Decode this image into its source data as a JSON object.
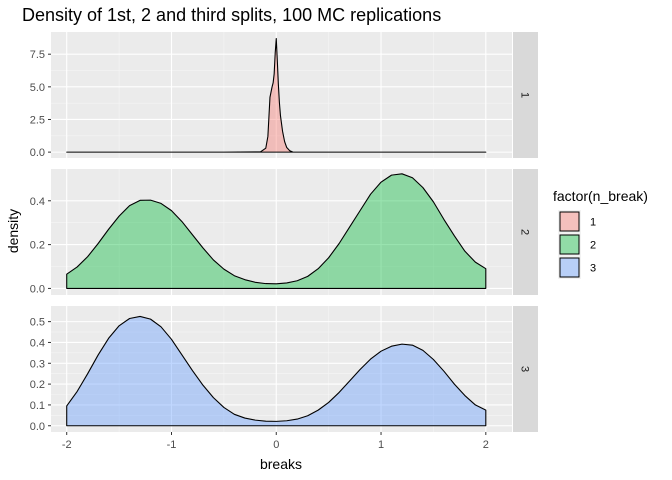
{
  "chart_data": {
    "type": "area",
    "title": "Density of 1st, 2 and third splits, 100 MC replications",
    "xlabel": "breaks",
    "ylabel": "density",
    "xlim": [
      -2.15,
      2.25
    ],
    "x_ticks": [
      -2,
      -1,
      0,
      1,
      2
    ],
    "x_tick_labels": [
      "-2",
      "-1",
      "0",
      "1",
      "2"
    ],
    "grid": true,
    "facet_variable": "n_break",
    "legend": {
      "title": "factor(n_break)",
      "position": "right",
      "entries": [
        "1",
        "2",
        "3"
      ]
    },
    "series": [
      {
        "name": "1",
        "color": "#F8766D",
        "ylim": [
          -0.45,
          9.2
        ],
        "y_ticks": [
          0,
          2.5,
          5,
          7.5
        ],
        "y_tick_labels": [
          "0.0",
          "2.5",
          "5.0",
          "7.5"
        ],
        "x": [
          -2.0,
          -0.5,
          -0.15,
          -0.1,
          -0.08,
          -0.06,
          -0.04,
          -0.03,
          -0.02,
          -0.01,
          0.0,
          0.01,
          0.02,
          0.03,
          0.04,
          0.06,
          0.08,
          0.1,
          0.13,
          0.16,
          0.5,
          2.0
        ],
        "values": [
          0,
          0,
          0.02,
          0.3,
          1.2,
          4.2,
          5.0,
          5.3,
          6.0,
          7.6,
          8.7,
          7.0,
          5.2,
          3.8,
          2.8,
          1.6,
          0.8,
          0.35,
          0.1,
          0.0,
          0,
          0
        ]
      },
      {
        "name": "2",
        "color": "#00BA38",
        "ylim": [
          -0.03,
          0.545
        ],
        "y_ticks": [
          0,
          0.2,
          0.4
        ],
        "y_tick_labels": [
          "0.0",
          "0.2",
          "0.4"
        ],
        "x": [
          -2.0,
          -1.9,
          -1.8,
          -1.7,
          -1.6,
          -1.5,
          -1.4,
          -1.3,
          -1.2,
          -1.1,
          -1.0,
          -0.9,
          -0.8,
          -0.7,
          -0.6,
          -0.5,
          -0.4,
          -0.3,
          -0.2,
          -0.1,
          0.0,
          0.1,
          0.2,
          0.3,
          0.4,
          0.5,
          0.6,
          0.7,
          0.8,
          0.9,
          1.0,
          1.1,
          1.2,
          1.3,
          1.4,
          1.5,
          1.6,
          1.7,
          1.8,
          1.9,
          2.0
        ],
        "values": [
          0.065,
          0.098,
          0.145,
          0.205,
          0.27,
          0.33,
          0.378,
          0.402,
          0.403,
          0.388,
          0.355,
          0.305,
          0.245,
          0.185,
          0.13,
          0.088,
          0.058,
          0.04,
          0.028,
          0.022,
          0.021,
          0.025,
          0.035,
          0.055,
          0.09,
          0.14,
          0.205,
          0.28,
          0.355,
          0.43,
          0.485,
          0.517,
          0.523,
          0.505,
          0.46,
          0.395,
          0.315,
          0.24,
          0.17,
          0.12,
          0.09
        ]
      },
      {
        "name": "3",
        "color": "#619CFF",
        "ylim": [
          -0.03,
          0.575
        ],
        "y_ticks": [
          0,
          0.1,
          0.2,
          0.3,
          0.4,
          0.5
        ],
        "y_tick_labels": [
          "0.0",
          "0.1",
          "0.2",
          "0.3",
          "0.4",
          "0.5"
        ],
        "x": [
          -2.0,
          -1.9,
          -1.8,
          -1.7,
          -1.6,
          -1.5,
          -1.4,
          -1.3,
          -1.2,
          -1.1,
          -1.0,
          -0.9,
          -0.8,
          -0.7,
          -0.6,
          -0.5,
          -0.4,
          -0.3,
          -0.2,
          -0.1,
          0.0,
          0.1,
          0.2,
          0.3,
          0.4,
          0.5,
          0.6,
          0.7,
          0.8,
          0.9,
          1.0,
          1.1,
          1.2,
          1.3,
          1.4,
          1.5,
          1.6,
          1.7,
          1.8,
          1.9,
          2.0
        ],
        "values": [
          0.095,
          0.165,
          0.25,
          0.34,
          0.42,
          0.48,
          0.515,
          0.525,
          0.512,
          0.475,
          0.415,
          0.34,
          0.265,
          0.195,
          0.135,
          0.088,
          0.055,
          0.037,
          0.027,
          0.022,
          0.021,
          0.024,
          0.032,
          0.048,
          0.075,
          0.112,
          0.16,
          0.215,
          0.27,
          0.32,
          0.358,
          0.382,
          0.392,
          0.387,
          0.362,
          0.318,
          0.262,
          0.2,
          0.145,
          0.1,
          0.075
        ]
      }
    ]
  }
}
